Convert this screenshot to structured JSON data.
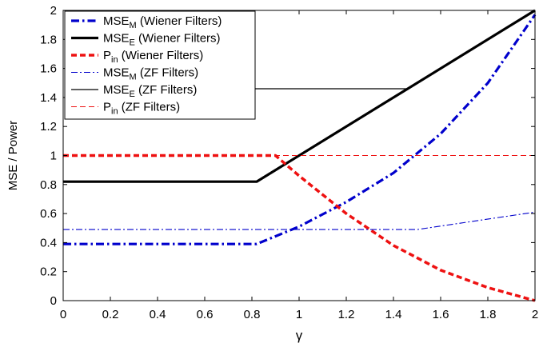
{
  "chart_data": {
    "type": "line",
    "title": "",
    "xlabel": "γ",
    "ylabel": "MSE / Power",
    "xlim": [
      0,
      2
    ],
    "ylim": [
      0,
      2
    ],
    "xticks": [
      "0",
      "0.2",
      "0.4",
      "0.6",
      "0.8",
      "1",
      "1.2",
      "1.4",
      "1.6",
      "1.8",
      "2"
    ],
    "yticks": [
      "0",
      "0.2",
      "0.4",
      "0.6",
      "0.8",
      "1",
      "1.2",
      "1.4",
      "1.6",
      "1.8",
      "2"
    ],
    "grid": false,
    "legend_position": "top-left",
    "series": [
      {
        "name": "MSE_M (Wiener Filters)",
        "legend_main": "MSE",
        "legend_sub": "M",
        "legend_suffix": "(Wiener Filters)",
        "color": "#0000cc",
        "style": "thick-dashdot",
        "x": [
          0,
          0.82,
          1.0,
          1.2,
          1.4,
          1.6,
          1.8,
          2.0
        ],
        "y": [
          0.39,
          0.39,
          0.51,
          0.68,
          0.88,
          1.15,
          1.5,
          1.97
        ]
      },
      {
        "name": "MSE_E (Wiener Filters)",
        "legend_main": "MSE",
        "legend_sub": "E",
        "legend_suffix": "(Wiener Filters)",
        "color": "#000000",
        "style": "thick-solid",
        "x": [
          0,
          0.82,
          2.0
        ],
        "y": [
          0.82,
          0.82,
          2.0
        ]
      },
      {
        "name": "P_in (Wiener Filters)",
        "legend_main": "P",
        "legend_sub": "in",
        "legend_suffix": "(Wiener Filters)",
        "color": "#ee1111",
        "style": "thick-dashed",
        "x": [
          0,
          0.9,
          1.0,
          1.2,
          1.4,
          1.6,
          1.8,
          2.0
        ],
        "y": [
          1.0,
          1.0,
          0.86,
          0.6,
          0.38,
          0.21,
          0.09,
          0.0
        ]
      },
      {
        "name": "MSE_M (ZF Filters)",
        "legend_main": "MSE",
        "legend_sub": "M",
        "legend_suffix": "(ZF Filters)",
        "color": "#0000cc",
        "style": "thin-dashdot",
        "x": [
          0,
          1.5,
          2.0
        ],
        "y": [
          0.49,
          0.49,
          0.61
        ]
      },
      {
        "name": "MSE_E (ZF Filters)",
        "legend_main": "MSE",
        "legend_sub": "E",
        "legend_suffix": "(ZF Filters)",
        "color": "#000000",
        "style": "thin-solid",
        "x": [
          0.34,
          1.46
        ],
        "y": [
          1.46,
          1.46
        ]
      },
      {
        "name": "P_in (ZF Filters)",
        "legend_main": "P",
        "legend_sub": "in",
        "legend_suffix": "(ZF Filters)",
        "color": "#ee1111",
        "style": "thin-dashed",
        "x": [
          0,
          2.0
        ],
        "y": [
          1.0,
          1.0
        ]
      }
    ]
  }
}
